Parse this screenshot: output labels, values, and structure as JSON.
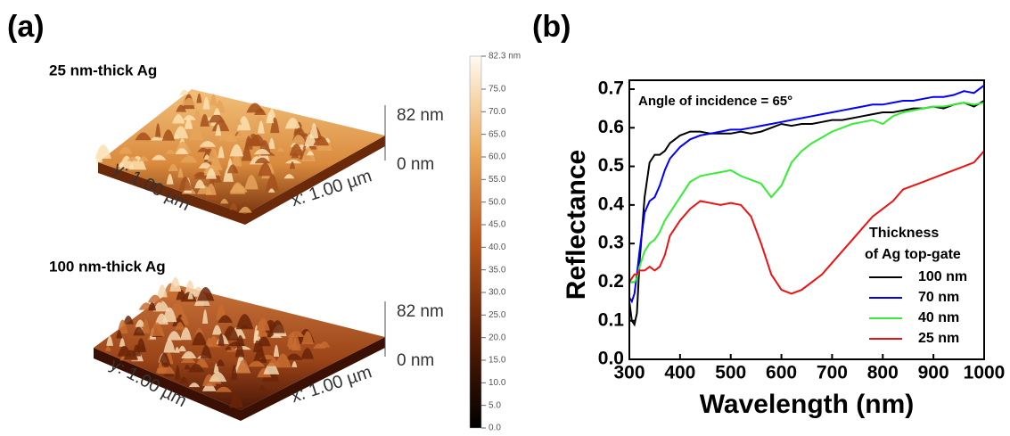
{
  "panel_a": {
    "label": "(a)",
    "samples": [
      {
        "title": "25 nm-thick Ag",
        "z_max": "82 nm",
        "z_min": "0 nm",
        "y_axis": "y: 1.00 µm",
        "x_axis": "x: 1.00 µm"
      },
      {
        "title": "100 nm-thick Ag",
        "z_max": "82 nm",
        "z_min": "0 nm",
        "y_axis": "y: 1.00 µm",
        "x_axis": "x: 1.00 µm"
      }
    ],
    "colorbar": {
      "lim": [
        0,
        82.3
      ],
      "ticks": [
        {
          "value": 0,
          "label": "0.0"
        },
        {
          "value": 5,
          "label": "5.0"
        },
        {
          "value": 10,
          "label": "10.0"
        },
        {
          "value": 15,
          "label": "15.0"
        },
        {
          "value": 20,
          "label": "20.0"
        },
        {
          "value": 25,
          "label": "25.0"
        },
        {
          "value": 30,
          "label": "30.0"
        },
        {
          "value": 35,
          "label": "35.0"
        },
        {
          "value": 40,
          "label": "40.0"
        },
        {
          "value": 45,
          "label": "45.0"
        },
        {
          "value": 50,
          "label": "50.0"
        },
        {
          "value": 55,
          "label": "55.0"
        },
        {
          "value": 60,
          "label": "60.0"
        },
        {
          "value": 65,
          "label": "65.0"
        },
        {
          "value": 70,
          "label": "70.0"
        },
        {
          "value": 75,
          "label": "75.0"
        },
        {
          "value": 82.3,
          "label": "82.3 nm"
        }
      ]
    }
  },
  "chart_data": {
    "type": "line",
    "panel_label": "(b)",
    "x_label": "Wavelength (nm)",
    "y_label": "Reflectance",
    "annotation": "Angle of incidence = 65°",
    "legend_title": [
      "Thickness",
      "of Ag top-gate"
    ],
    "legend": "lower right",
    "x": [
      300,
      305,
      310,
      315,
      320,
      330,
      340,
      350,
      360,
      370,
      380,
      400,
      420,
      440,
      460,
      480,
      500,
      520,
      540,
      560,
      580,
      600,
      620,
      640,
      660,
      680,
      700,
      720,
      740,
      760,
      780,
      800,
      820,
      840,
      860,
      880,
      900,
      920,
      940,
      960,
      980,
      1000
    ],
    "xlim": [
      300,
      1000
    ],
    "xticks": [
      300,
      400,
      500,
      600,
      700,
      800,
      900,
      1000
    ],
    "ylim": [
      0,
      0.7
    ],
    "yticks": [
      {
        "value": 0,
        "label": "0.0"
      },
      {
        "value": 0.1,
        "label": "0.1"
      },
      0.2,
      0.3,
      0.4,
      0.5,
      0.6,
      0.7
    ],
    "series": [
      {
        "name": "100 nm",
        "color": "#000000",
        "values": [
          0.15,
          0.1,
          0.09,
          0.12,
          0.25,
          0.42,
          0.51,
          0.53,
          0.53,
          0.54,
          0.56,
          0.58,
          0.59,
          0.59,
          0.585,
          0.585,
          0.585,
          0.59,
          0.585,
          0.59,
          0.6,
          0.61,
          0.605,
          0.61,
          0.61,
          0.615,
          0.62,
          0.62,
          0.625,
          0.63,
          0.635,
          0.64,
          0.64,
          0.645,
          0.65,
          0.65,
          0.655,
          0.65,
          0.66,
          0.665,
          0.655,
          0.67
        ]
      },
      {
        "name": "70 nm",
        "color": "#0000ff",
        "values": [
          0.16,
          0.15,
          0.17,
          0.22,
          0.28,
          0.38,
          0.41,
          0.42,
          0.45,
          0.49,
          0.52,
          0.55,
          0.57,
          0.58,
          0.585,
          0.59,
          0.595,
          0.595,
          0.6,
          0.605,
          0.61,
          0.615,
          0.62,
          0.625,
          0.63,
          0.635,
          0.64,
          0.645,
          0.65,
          0.655,
          0.66,
          0.66,
          0.665,
          0.67,
          0.67,
          0.675,
          0.68,
          0.68,
          0.685,
          0.695,
          0.69,
          0.71
        ]
      },
      {
        "name": "40 nm",
        "color": "#33ee33",
        "values": [
          0.2,
          0.2,
          0.2,
          0.21,
          0.24,
          0.28,
          0.3,
          0.31,
          0.33,
          0.36,
          0.38,
          0.42,
          0.46,
          0.475,
          0.48,
          0.485,
          0.49,
          0.475,
          0.465,
          0.455,
          0.42,
          0.45,
          0.51,
          0.54,
          0.56,
          0.575,
          0.59,
          0.6,
          0.61,
          0.615,
          0.62,
          0.61,
          0.63,
          0.64,
          0.645,
          0.65,
          0.655,
          0.655,
          0.66,
          0.665,
          0.66,
          0.665
        ]
      },
      {
        "name": "25 nm",
        "color": "#ee1111",
        "values": [
          0.2,
          0.21,
          0.22,
          0.22,
          0.23,
          0.23,
          0.24,
          0.23,
          0.24,
          0.27,
          0.32,
          0.36,
          0.39,
          0.41,
          0.405,
          0.4,
          0.405,
          0.4,
          0.37,
          0.3,
          0.22,
          0.18,
          0.17,
          0.18,
          0.2,
          0.22,
          0.25,
          0.28,
          0.31,
          0.34,
          0.37,
          0.39,
          0.41,
          0.44,
          0.45,
          0.46,
          0.47,
          0.48,
          0.49,
          0.5,
          0.51,
          0.54
        ]
      }
    ]
  }
}
